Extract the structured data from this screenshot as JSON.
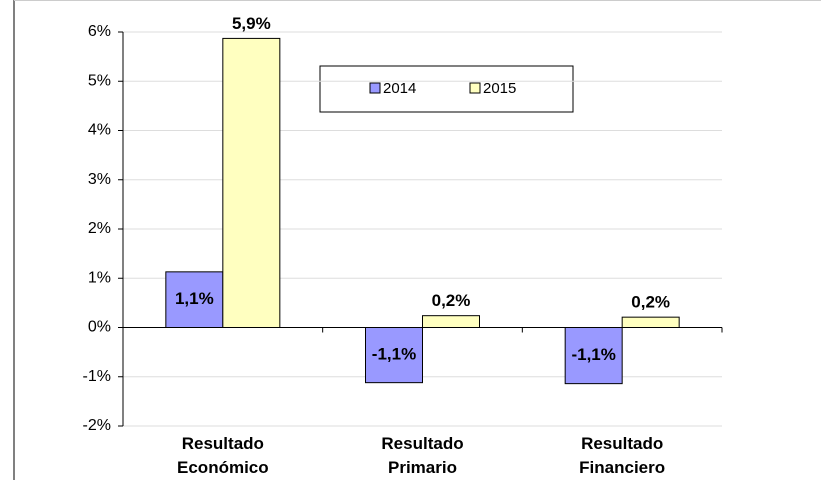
{
  "chart_data": {
    "type": "bar",
    "categories": [
      "Resultado Económico",
      "Resultado Primario",
      "Resultado Financiero"
    ],
    "series": [
      {
        "name": "2014",
        "color": "#9999ff",
        "values": [
          1.13,
          -1.12,
          -1.14
        ],
        "value_labels": [
          "1,1%",
          "-1,1%",
          "-1,1%"
        ]
      },
      {
        "name": "2015",
        "color": "#ffffc0",
        "values": [
          5.87,
          0.24,
          0.21
        ],
        "value_labels": [
          "5,9%",
          "0,2%",
          "0,2%"
        ]
      }
    ],
    "ylim": [
      -2,
      6
    ],
    "yticks": [
      {
        "value": -2,
        "label": "-2%"
      },
      {
        "value": -1,
        "label": "-1%"
      },
      {
        "value": 0,
        "label": "0%"
      },
      {
        "value": 1,
        "label": "1%"
      },
      {
        "value": 2,
        "label": "2%"
      },
      {
        "value": 3,
        "label": "3%"
      },
      {
        "value": 4,
        "label": "4%"
      },
      {
        "value": 5,
        "label": "5%"
      },
      {
        "value": 6,
        "label": "6%"
      }
    ],
    "grid": true
  }
}
